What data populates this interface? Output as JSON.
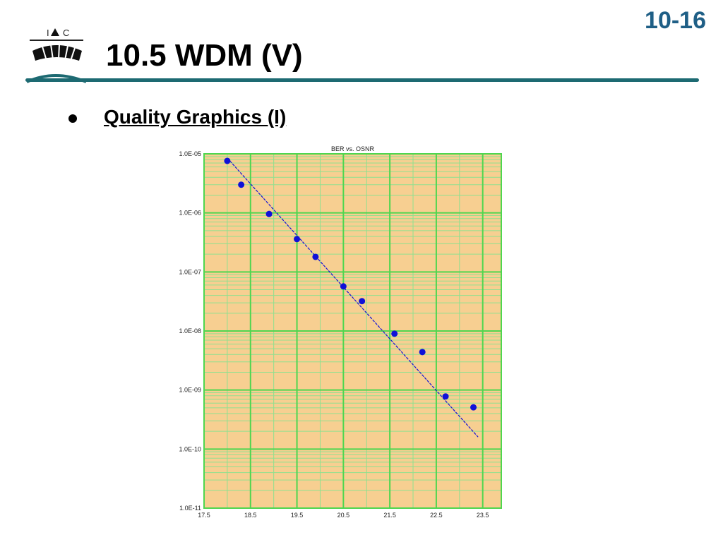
{
  "slide_number": "10-16",
  "logo": {
    "text_left": "I",
    "text_right": "C"
  },
  "title": "10.5 WDM (V)",
  "bullet": {
    "text": "Quality Graphics (I)"
  },
  "colors": {
    "accent": "#1d6a72",
    "slide_number": "#1f5f86",
    "plot_bg": "#f7cf91",
    "grid_major": "#4fd64f",
    "grid_minor": "#8fe08f",
    "data": "#1010d8"
  },
  "chart_data": {
    "type": "scatter",
    "title": "BER vs. OSNR",
    "xlabel": "",
    "ylabel": "",
    "y_scale": "log",
    "xlim": [
      17.5,
      23.9
    ],
    "ylim": [
      1e-11,
      1e-05
    ],
    "grid": true,
    "x_ticks": [
      17.5,
      18.5,
      19.5,
      20.5,
      21.5,
      22.5,
      23.5
    ],
    "x_tick_labels": [
      "17.5",
      "18.5",
      "19.5",
      "20.5",
      "21.5",
      "22.5",
      "23.5"
    ],
    "y_ticks": [
      1e-05,
      1e-06,
      1e-07,
      1e-08,
      1e-09,
      1e-10,
      1e-11
    ],
    "y_tick_labels": [
      "1.0E-05",
      "1.0E-06",
      "1.0E-07",
      "1.0E-08",
      "1.0E-09",
      "1.0E-10",
      "1.0E-11"
    ],
    "series": [
      {
        "points": [
          [
            18.0,
            7.6e-06
          ],
          [
            18.3,
            3e-06
          ],
          [
            18.9,
            9.6e-07
          ],
          [
            19.5,
            3.6e-07
          ],
          [
            19.9,
            1.8e-07
          ],
          [
            20.5,
            5.7e-08
          ],
          [
            20.9,
            3.2e-08
          ],
          [
            21.6,
            9e-09
          ],
          [
            22.2,
            4.4e-09
          ],
          [
            22.7,
            7.8e-10
          ],
          [
            23.3,
            5.1e-10
          ]
        ]
      }
    ],
    "fit_line": [
      [
        18.0,
        8.5e-06
      ],
      [
        23.4,
        1.6e-10
      ]
    ]
  }
}
